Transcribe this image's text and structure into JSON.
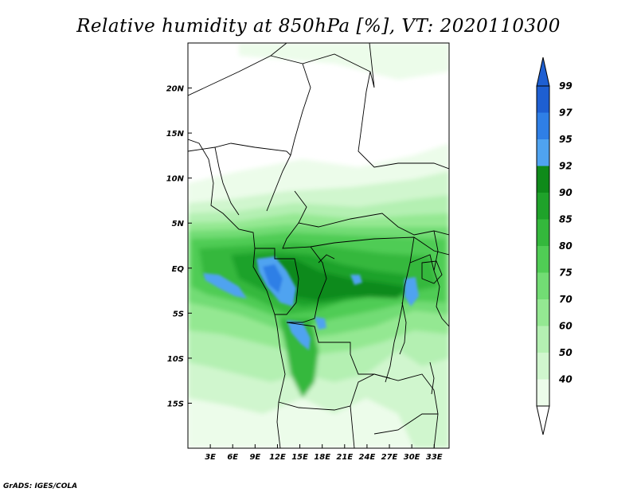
{
  "title": "Relative humidity at 850hPa [%], VT: 2020110300",
  "credit": "GrADS: IGES/COLA",
  "map": {
    "lon_labels": [
      "3E",
      "6E",
      "9E",
      "12E",
      "15E",
      "18E",
      "21E",
      "24E",
      "27E",
      "30E",
      "33E"
    ],
    "lon_values": [
      3,
      6,
      9,
      12,
      15,
      18,
      21,
      24,
      27,
      30,
      33
    ],
    "lat_labels": [
      "20N",
      "15N",
      "10N",
      "5N",
      "EQ",
      "5S",
      "10S",
      "15S"
    ],
    "lat_values": [
      20,
      15,
      10,
      5,
      0,
      -5,
      -10,
      -15
    ],
    "lon_range": [
      0,
      35
    ],
    "lat_range": [
      -20,
      25
    ]
  },
  "colorbar": {
    "labels": [
      "99",
      "97",
      "95",
      "92",
      "90",
      "85",
      "80",
      "75",
      "70",
      "60",
      "50",
      "40"
    ],
    "colors": [
      "#1e5fd2",
      "#2f7fe6",
      "#4fa3f0",
      "#0f8a1a",
      "#1fa22a",
      "#34b83c",
      "#50cc55",
      "#72dc74",
      "#94e892",
      "#b4f0b2",
      "#d0f6ce",
      "#ecfcea",
      "#ffffff"
    ],
    "top_arrow_color": "#1e5fd2",
    "bottom_arrow_color": "#ffffff"
  }
}
